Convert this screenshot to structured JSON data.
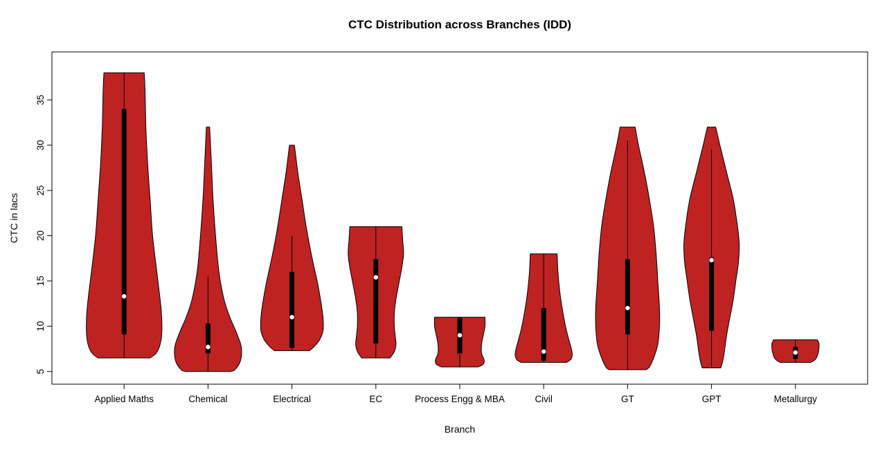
{
  "chart_data": {
    "type": "violin",
    "title": "CTC Distribution across Branches (IDD)",
    "xlabel": "Branch",
    "ylabel": "CTC in lacs",
    "fill_color": "#BE2322",
    "outline_color": "#000000",
    "median_dot_color": "#ffffff",
    "y_ticks": [
      5,
      10,
      15,
      20,
      25,
      30,
      35
    ],
    "y_domain": [
      3.6,
      40.3
    ],
    "x_domain": [
      0.14,
      9.86
    ],
    "categories": [
      "Applied Maths",
      "Chemical",
      "Electrical",
      "EC",
      "Process Engg & MBA",
      "Civil",
      "GT",
      "GPT",
      "Metallurgy"
    ],
    "violins": [
      {
        "branch": "Applied Maths",
        "min": 6.5,
        "max": 38,
        "q1": 9.1,
        "median": 13.3,
        "q3": 34,
        "whisker_low": 6.5,
        "whisker_high": 38,
        "profile": [
          [
            38,
            0.24
          ],
          [
            36,
            0.25
          ],
          [
            32,
            0.26
          ],
          [
            28,
            0.28
          ],
          [
            24,
            0.31
          ],
          [
            20,
            0.34
          ],
          [
            16,
            0.39
          ],
          [
            12,
            0.44
          ],
          [
            9.5,
            0.45
          ],
          [
            8,
            0.43
          ],
          [
            7,
            0.38
          ],
          [
            6.5,
            0.31
          ]
        ]
      },
      {
        "branch": "Chemical",
        "min": 5,
        "max": 32,
        "q1": 7.0,
        "median": 7.7,
        "q3": 10.3,
        "whisker_low": 5,
        "whisker_high": 15.5,
        "profile": [
          [
            32,
            0.02
          ],
          [
            28,
            0.04
          ],
          [
            24,
            0.06
          ],
          [
            20,
            0.09
          ],
          [
            16,
            0.13
          ],
          [
            13,
            0.19
          ],
          [
            11,
            0.26
          ],
          [
            9.5,
            0.33
          ],
          [
            8,
            0.39
          ],
          [
            7,
            0.4
          ],
          [
            6,
            0.38
          ],
          [
            5.2,
            0.32
          ],
          [
            5,
            0.27
          ]
        ]
      },
      {
        "branch": "Electrical",
        "min": 7.3,
        "max": 30,
        "q1": 7.6,
        "median": 11,
        "q3": 16,
        "whisker_low": 7.3,
        "whisker_high": 20,
        "profile": [
          [
            30,
            0.03
          ],
          [
            27,
            0.07
          ],
          [
            24,
            0.12
          ],
          [
            21,
            0.17
          ],
          [
            18,
            0.23
          ],
          [
            15,
            0.3
          ],
          [
            13,
            0.34
          ],
          [
            11,
            0.37
          ],
          [
            9.5,
            0.37
          ],
          [
            8.5,
            0.33
          ],
          [
            7.8,
            0.27
          ],
          [
            7.3,
            0.21
          ]
        ]
      },
      {
        "branch": "EC",
        "min": 6.5,
        "max": 21,
        "q1": 8.1,
        "median": 15.4,
        "q3": 17.4,
        "whisker_low": 6.5,
        "whisker_high": 21,
        "profile": [
          [
            21,
            0.31
          ],
          [
            19.5,
            0.32
          ],
          [
            18,
            0.33
          ],
          [
            16.5,
            0.31
          ],
          [
            15,
            0.28
          ],
          [
            13,
            0.24
          ],
          [
            11.5,
            0.22
          ],
          [
            10,
            0.22
          ],
          [
            9,
            0.23
          ],
          [
            8,
            0.24
          ],
          [
            7.2,
            0.22
          ],
          [
            6.5,
            0.17
          ]
        ]
      },
      {
        "branch": "Process Engg & MBA",
        "min": 5.5,
        "max": 11,
        "q1": 7,
        "median": 9,
        "q3": 10.9,
        "whisker_low": 5.5,
        "whisker_high": 11,
        "profile": [
          [
            11,
            0.3
          ],
          [
            10,
            0.3
          ],
          [
            9,
            0.28
          ],
          [
            8,
            0.26
          ],
          [
            7,
            0.26
          ],
          [
            6.3,
            0.29
          ],
          [
            5.8,
            0.28
          ],
          [
            5.5,
            0.22
          ]
        ]
      },
      {
        "branch": "Civil",
        "min": 6,
        "max": 18,
        "q1": 6.2,
        "median": 7.2,
        "q3": 12,
        "whisker_low": 6,
        "whisker_high": 18,
        "profile": [
          [
            18,
            0.16
          ],
          [
            16,
            0.17
          ],
          [
            14,
            0.19
          ],
          [
            12,
            0.22
          ],
          [
            10,
            0.26
          ],
          [
            8.5,
            0.3
          ],
          [
            7.5,
            0.33
          ],
          [
            6.8,
            0.34
          ],
          [
            6.3,
            0.32
          ],
          [
            6,
            0.27
          ]
        ]
      },
      {
        "branch": "GT",
        "min": 5.2,
        "max": 32,
        "q1": 9.1,
        "median": 12,
        "q3": 17.4,
        "whisker_low": 5.2,
        "whisker_high": 30.5,
        "profile": [
          [
            32,
            0.09
          ],
          [
            30,
            0.13
          ],
          [
            27,
            0.2
          ],
          [
            24,
            0.26
          ],
          [
            21,
            0.31
          ],
          [
            18,
            0.34
          ],
          [
            15,
            0.36
          ],
          [
            12,
            0.38
          ],
          [
            10,
            0.38
          ],
          [
            8,
            0.36
          ],
          [
            6.5,
            0.31
          ],
          [
            5.5,
            0.26
          ],
          [
            5.2,
            0.22
          ]
        ]
      },
      {
        "branch": "GPT",
        "min": 5.4,
        "max": 32,
        "q1": 9.5,
        "median": 17.3,
        "q3": 17.6,
        "whisker_low": 5.4,
        "whisker_high": 29.5,
        "profile": [
          [
            32,
            0.05
          ],
          [
            30,
            0.1
          ],
          [
            27,
            0.18
          ],
          [
            24,
            0.26
          ],
          [
            21,
            0.31
          ],
          [
            19,
            0.33
          ],
          [
            17,
            0.32
          ],
          [
            15,
            0.29
          ],
          [
            13,
            0.26
          ],
          [
            11,
            0.22
          ],
          [
            9,
            0.18
          ],
          [
            7,
            0.15
          ],
          [
            6,
            0.13
          ],
          [
            5.4,
            0.11
          ]
        ]
      },
      {
        "branch": "Metallurgy",
        "min": 6,
        "max": 8.5,
        "q1": 6.4,
        "median": 7.1,
        "q3": 7.7,
        "whisker_low": 6,
        "whisker_high": 8.5,
        "profile": [
          [
            8.5,
            0.26
          ],
          [
            8.1,
            0.28
          ],
          [
            7.5,
            0.28
          ],
          [
            7,
            0.27
          ],
          [
            6.5,
            0.25
          ],
          [
            6.2,
            0.22
          ],
          [
            6,
            0.18
          ]
        ]
      }
    ]
  }
}
